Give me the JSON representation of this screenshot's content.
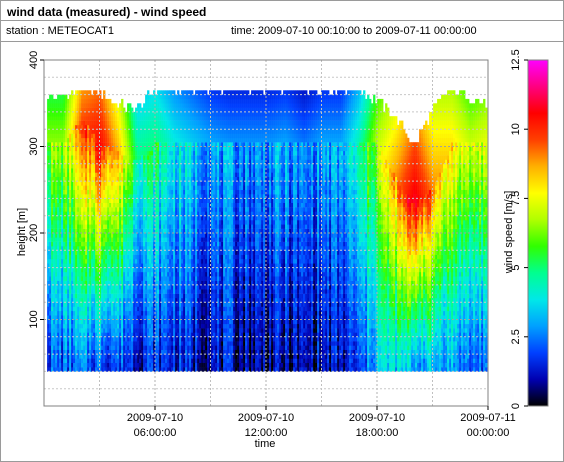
{
  "header": {
    "title": "wind data (measured) - wind speed",
    "station": "station : METEOCAT1",
    "time": "time: 2009-07-10 00:10:00 to 2009-07-11 00:00:00"
  },
  "chart_data": {
    "type": "heatmap",
    "title": "wind data (measured) - wind speed",
    "xlabel": "time",
    "ylabel": "height [m]",
    "colorbar_label": "wind speed [m/s]",
    "x_range_hours": [
      1.0,
      24.0
    ],
    "y_range": [
      0,
      400
    ],
    "color_range": [
      0,
      12.5
    ],
    "x_ticks": [
      {
        "hour": 6,
        "line1": "2009-07-10",
        "line2": "06:00:00"
      },
      {
        "hour": 12,
        "line1": "2009-07-10",
        "line2": "12:00:00"
      },
      {
        "hour": 18,
        "line1": "2009-07-10",
        "line2": "18:00:00"
      },
      {
        "hour": 24,
        "line1": "2009-07-11",
        "line2": "00:00:00"
      }
    ],
    "y_ticks": [
      100,
      200,
      300,
      400
    ],
    "colorbar_ticks": [
      {
        "value": 0,
        "label": "0"
      },
      {
        "value": 2.5,
        "label": "2.5"
      },
      {
        "value": 5,
        "label": "5"
      },
      {
        "value": 7.5,
        "label": "7.5"
      },
      {
        "value": 10,
        "label": "10"
      },
      {
        "value": 12.5,
        "label": "12.5"
      }
    ],
    "colormap": [
      "#000000",
      "#0000b0",
      "#0040ff",
      "#00a0ff",
      "#00e8e8",
      "#00ff90",
      "#30ff00",
      "#b0ff00",
      "#ffff00",
      "#ffb000",
      "#ff4000",
      "#ff0000",
      "#ff0080",
      "#ff00ff"
    ],
    "height_min": 40,
    "height_max_valid": 365,
    "height_step": 5,
    "grid": true,
    "profiles": [
      {
        "hour": 1.0,
        "top": 355,
        "low": 2.0,
        "peak": 6.5,
        "peak_h": 300
      },
      {
        "hour": 2.0,
        "top": 365,
        "low": 2.2,
        "peak": 9.5,
        "peak_h": 330
      },
      {
        "hour": 3.0,
        "top": 360,
        "low": 2.0,
        "peak": 10.5,
        "peak_h": 300
      },
      {
        "hour": 4.0,
        "top": 345,
        "low": 1.8,
        "peak": 8.5,
        "peak_h": 290
      },
      {
        "hour": 5.0,
        "top": 340,
        "low": 1.5,
        "peak": 5.0,
        "peak_h": 280
      },
      {
        "hour": 6.0,
        "top": 365,
        "low": 1.5,
        "peak": 5.0,
        "peak_h": 300
      },
      {
        "hour": 7.0,
        "top": 365,
        "low": 1.5,
        "peak": 4.0,
        "peak_h": 300
      },
      {
        "hour": 8.0,
        "top": 365,
        "low": 1.2,
        "peak": 3.5,
        "peak_h": 300
      },
      {
        "hour": 9.0,
        "top": 365,
        "low": 1.0,
        "peak": 3.0,
        "peak_h": 300
      },
      {
        "hour": 10.0,
        "top": 365,
        "low": 1.0,
        "peak": 2.8,
        "peak_h": 300
      },
      {
        "hour": 11.0,
        "top": 365,
        "low": 0.8,
        "peak": 2.8,
        "peak_h": 300
      },
      {
        "hour": 12.0,
        "top": 365,
        "low": 0.8,
        "peak": 2.8,
        "peak_h": 300
      },
      {
        "hour": 13.0,
        "top": 365,
        "low": 0.8,
        "peak": 3.0,
        "peak_h": 300
      },
      {
        "hour": 14.0,
        "top": 365,
        "low": 0.8,
        "peak": 2.5,
        "peak_h": 300
      },
      {
        "hour": 15.0,
        "top": 365,
        "low": 1.0,
        "peak": 3.0,
        "peak_h": 300
      },
      {
        "hour": 16.0,
        "top": 365,
        "low": 1.0,
        "peak": 3.0,
        "peak_h": 300
      },
      {
        "hour": 17.0,
        "top": 365,
        "low": 1.5,
        "peak": 4.5,
        "peak_h": 300
      },
      {
        "hour": 18.0,
        "top": 350,
        "low": 3.5,
        "peak": 7.0,
        "peak_h": 300
      },
      {
        "hour": 19.0,
        "top": 330,
        "low": 3.5,
        "peak": 9.0,
        "peak_h": 260
      },
      {
        "hour": 20.0,
        "top": 300,
        "low": 3.0,
        "peak": 11.0,
        "peak_h": 230
      },
      {
        "hour": 21.0,
        "top": 340,
        "low": 3.0,
        "peak": 9.0,
        "peak_h": 250
      },
      {
        "hour": 22.0,
        "top": 365,
        "low": 3.0,
        "peak": 8.0,
        "peak_h": 300
      },
      {
        "hour": 23.0,
        "top": 355,
        "low": 2.0,
        "peak": 7.0,
        "peak_h": 300
      },
      {
        "hour": 24.0,
        "top": 345,
        "low": 2.5,
        "peak": 7.5,
        "peak_h": 300
      }
    ]
  }
}
